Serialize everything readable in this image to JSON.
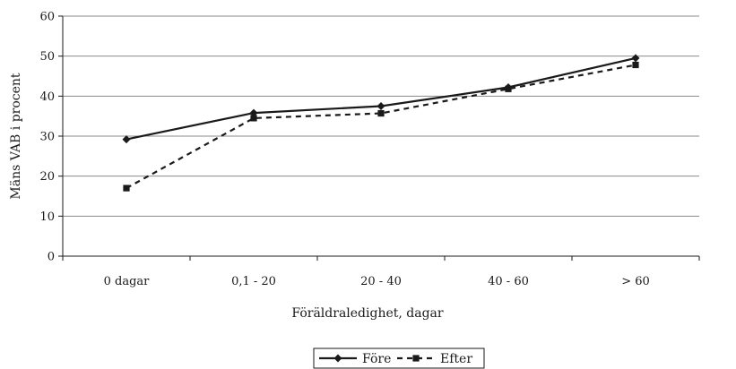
{
  "chart_data": {
    "type": "line",
    "categories": [
      "0 dagar",
      "0,1 - 20",
      "20 - 40",
      "40 - 60",
      "> 60"
    ],
    "series": [
      {
        "name": "Före",
        "values": [
          29.2,
          35.8,
          37.5,
          42.2,
          49.5
        ],
        "color": "#1a1a1a",
        "line_style": "solid",
        "marker": "diamond"
      },
      {
        "name": "Efter",
        "values": [
          17.0,
          34.5,
          35.7,
          41.8,
          47.8
        ],
        "color": "#1a1a1a",
        "line_style": "dashed",
        "marker": "square"
      }
    ],
    "xlabel": "Föräldraledighet, dagar",
    "ylabel": "Mäns VAB i procent",
    "ylim": [
      0,
      60
    ],
    "yticks": [
      0,
      10,
      20,
      30,
      40,
      50,
      60
    ],
    "grid": "horizontal",
    "legend_position": "bottom-center"
  }
}
